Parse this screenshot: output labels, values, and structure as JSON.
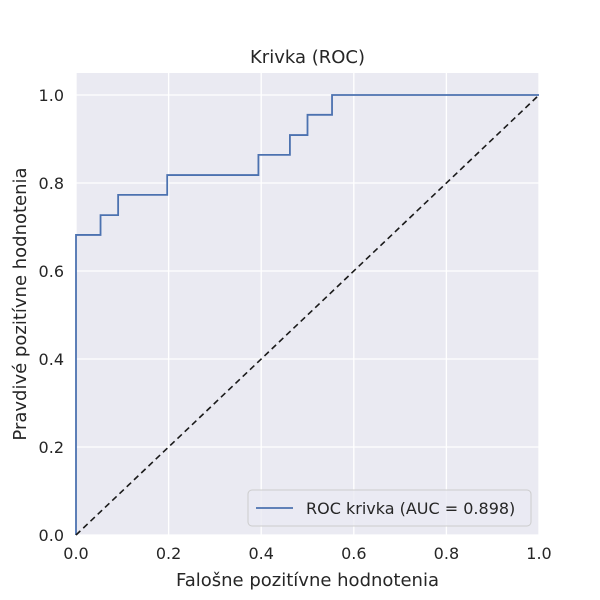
{
  "chart_data": {
    "type": "line",
    "title": "Krivka (ROC)",
    "xlabel": "Falošne pozitívne hodnotenia",
    "ylabel": "Pravdivé pozitívne hodnotenia",
    "xlim": [
      0.0,
      1.0
    ],
    "ylim": [
      0.0,
      1.05
    ],
    "xticks": [
      "0.0",
      "0.2",
      "0.4",
      "0.6",
      "0.8",
      "1.0"
    ],
    "yticks": [
      "0.0",
      "0.2",
      "0.4",
      "0.6",
      "0.8",
      "1.0"
    ],
    "grid": true,
    "legend_position": "lower-right",
    "series": [
      {
        "name": "ROC krivka (AUC = 0.898)",
        "style": "step",
        "color": "#4c72b0",
        "x": [
          0.0,
          0.0,
          0.053,
          0.053,
          0.091,
          0.091,
          0.197,
          0.197,
          0.394,
          0.394,
          0.462,
          0.462,
          0.5,
          0.5,
          0.553,
          0.553,
          1.0
        ],
        "y": [
          0.0,
          0.682,
          0.682,
          0.727,
          0.727,
          0.773,
          0.773,
          0.818,
          0.818,
          0.864,
          0.864,
          0.909,
          0.909,
          0.955,
          0.955,
          1.0,
          1.0
        ]
      },
      {
        "style": "dashed",
        "color": "#1a1a1a",
        "x": [
          0.0,
          1.0
        ],
        "y": [
          0.0,
          1.0
        ]
      }
    ],
    "colors": {
      "plot_background": "#eaeaf2",
      "grid": "#ffffff"
    }
  }
}
